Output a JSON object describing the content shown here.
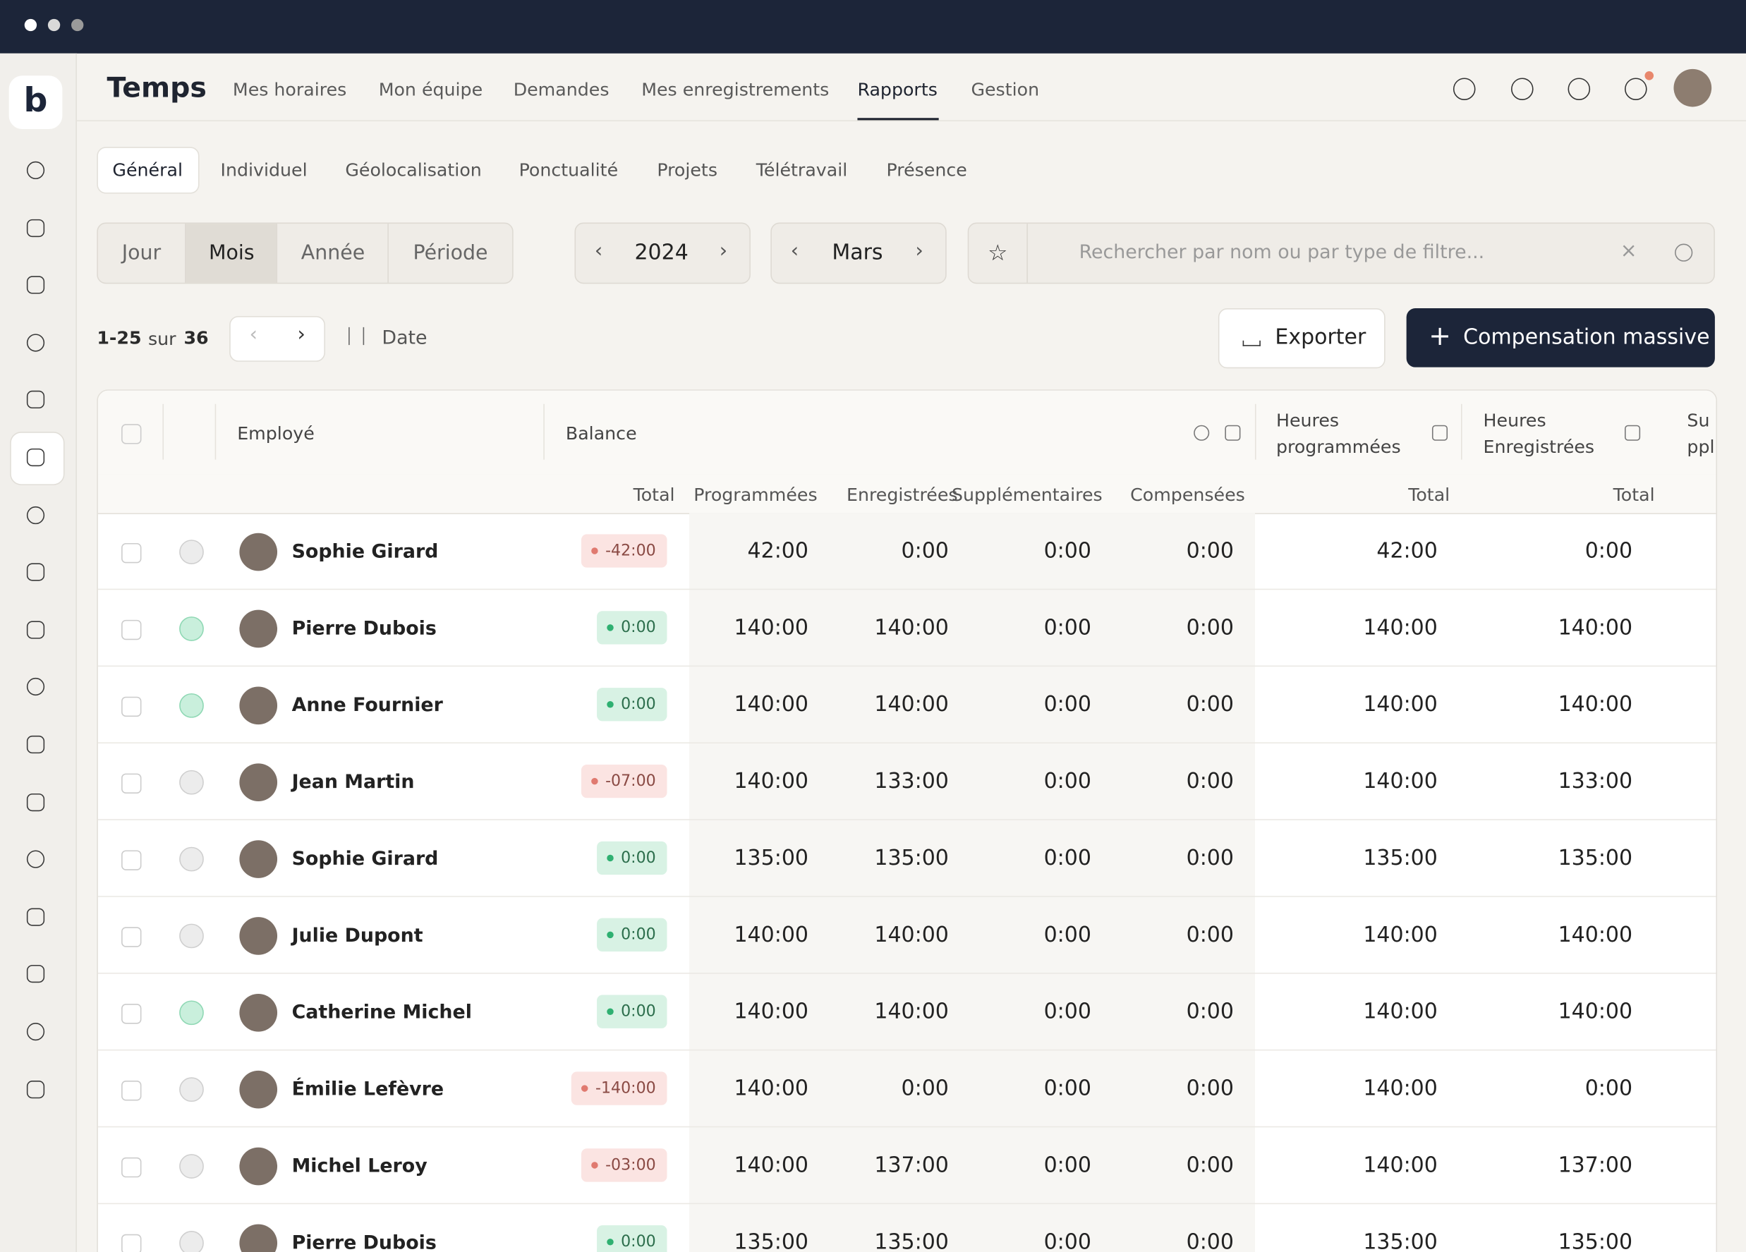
{
  "header": {
    "app_title": "Temps",
    "nav": [
      "Mes horaires",
      "Mon équipe",
      "Demandes",
      "Mes enregistrements",
      "Rapports",
      "Gestion"
    ],
    "active_nav": 4
  },
  "tabs": {
    "items": [
      "Général",
      "Individuel",
      "Géolocalisation",
      "Ponctualité",
      "Projets",
      "Télétravail",
      "Présence"
    ],
    "active": 0
  },
  "filters": {
    "period": [
      "Jour",
      "Mois",
      "Année",
      "Période"
    ],
    "active_period": 1,
    "year": "2024",
    "month": "Mars",
    "search_placeholder": "Rechercher par nom ou par type de filtre..."
  },
  "toolbar": {
    "range": "1-25",
    "of": "sur",
    "total": "36",
    "sort": "Date",
    "export": "Exporter",
    "compensate": "Compensation massive"
  },
  "table": {
    "headers": {
      "employee": "Employé",
      "balance": "Balance",
      "scheduled": "Heures programmées",
      "recorded": "Heures Enregistrées",
      "extra": "Supplémentaires"
    },
    "subheaders": [
      "Total",
      "Programmées",
      "Enregistrées",
      "Supplémentaires",
      "Compensées",
      "Total",
      "Total"
    ],
    "rows": [
      {
        "name": "Sophie Girard",
        "active": false,
        "balance": "-42:00",
        "cells": [
          "42:00",
          "0:00",
          "0:00",
          "0:00",
          "42:00",
          "0:00"
        ]
      },
      {
        "name": "Pierre Dubois",
        "active": true,
        "balance": "0:00",
        "cells": [
          "140:00",
          "140:00",
          "0:00",
          "0:00",
          "140:00",
          "140:00"
        ]
      },
      {
        "name": "Anne Fournier",
        "active": true,
        "balance": "0:00",
        "cells": [
          "140:00",
          "140:00",
          "0:00",
          "0:00",
          "140:00",
          "140:00"
        ]
      },
      {
        "name": "Jean Martin",
        "active": false,
        "balance": "-07:00",
        "cells": [
          "140:00",
          "133:00",
          "0:00",
          "0:00",
          "140:00",
          "133:00"
        ]
      },
      {
        "name": "Sophie Girard",
        "active": false,
        "balance": "0:00",
        "cells": [
          "135:00",
          "135:00",
          "0:00",
          "0:00",
          "135:00",
          "135:00"
        ]
      },
      {
        "name": "Julie Dupont",
        "active": false,
        "balance": "0:00",
        "cells": [
          "140:00",
          "140:00",
          "0:00",
          "0:00",
          "140:00",
          "140:00"
        ]
      },
      {
        "name": "Catherine Michel",
        "active": true,
        "balance": "0:00",
        "cells": [
          "140:00",
          "140:00",
          "0:00",
          "0:00",
          "140:00",
          "140:00"
        ]
      },
      {
        "name": "Émilie Lefèvre",
        "active": false,
        "balance": "-140:00",
        "cells": [
          "140:00",
          "0:00",
          "0:00",
          "0:00",
          "140:00",
          "0:00"
        ]
      },
      {
        "name": "Michel Leroy",
        "active": false,
        "balance": "-03:00",
        "cells": [
          "140:00",
          "137:00",
          "0:00",
          "0:00",
          "140:00",
          "137:00"
        ]
      },
      {
        "name": "Pierre Dubois",
        "active": false,
        "balance": "0:00",
        "cells": [
          "135:00",
          "135:00",
          "0:00",
          "0:00",
          "135:00",
          "135:00"
        ]
      }
    ]
  }
}
